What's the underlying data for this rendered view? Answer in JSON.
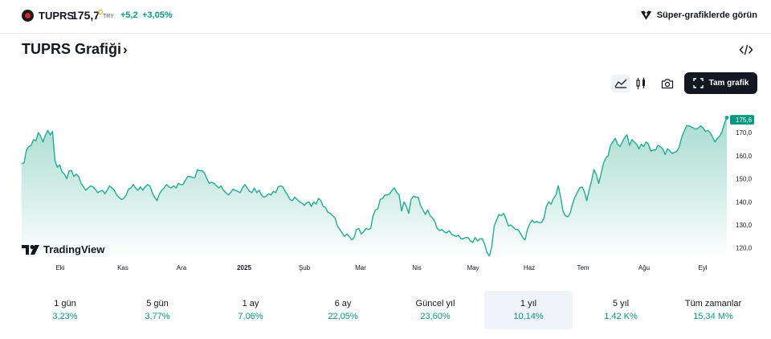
{
  "symbol": {
    "name": "TUPRS",
    "price": "175,7",
    "currency": "TRY",
    "change": "+5,2",
    "change_pct": "+3,05%"
  },
  "super_charts_label": "Süper-grafiklerde görün",
  "title": "TUPRS Grafiği",
  "toolbar": {
    "full_chart_label": "Tam grafik"
  },
  "branding": "TradingView",
  "colors": {
    "line": "#22ab94",
    "positive": "#089981",
    "fill_top": "#9fd9cc",
    "fill_bottom": "#ffffff"
  },
  "chart_data": {
    "type": "area",
    "y_ticks": [
      "170,0",
      "160,0",
      "150,0",
      "140,0",
      "130,0",
      "120,0"
    ],
    "y_tick_values": [
      170,
      160,
      150,
      140,
      130,
      120
    ],
    "x_ticks": [
      "Eki",
      "Kas",
      "Ara",
      "2025",
      "Şub",
      "Mar",
      "Nis",
      "May",
      "Haz",
      "Tem",
      "Ağu",
      "Eyl"
    ],
    "ylim": [
      115,
      184
    ],
    "last_value_label": "175,6",
    "last_value": 175.6,
    "values": [
      156.5,
      157,
      162.5,
      164,
      164.5,
      167,
      166.5,
      170,
      168.5,
      166,
      169,
      171,
      169,
      170.5,
      158,
      155,
      156,
      153,
      152,
      150,
      153.5,
      153.5,
      151,
      152,
      151,
      148,
      146.5,
      145,
      146,
      147,
      146.5,
      145.5,
      144,
      144.5,
      145,
      143.5,
      145,
      147,
      146,
      145,
      143,
      142,
      141,
      141.5,
      143,
      145.5,
      146,
      147.5,
      146,
      145,
      146.5,
      145,
      146.5,
      147.5,
      147,
      144,
      142,
      140.5,
      143.5,
      145,
      146,
      147.5,
      146.5,
      146,
      147,
      146,
      148,
      147.5,
      147.5,
      149.5,
      151,
      151,
      150.5,
      150.5,
      154,
      153.5,
      153.5,
      152.5,
      150,
      148,
      148.5,
      148,
      147,
      146,
      147,
      145,
      144,
      143,
      144,
      145.5,
      145,
      144.5,
      144,
      146,
      147.5,
      146,
      144.5,
      144,
      146,
      144,
      145,
      143,
      142,
      142.5,
      143.5,
      143,
      144.5,
      144,
      146.5,
      147,
      146.5,
      144.5,
      143,
      141,
      140.5,
      142,
      141,
      140,
      139.5,
      138.5,
      139.5,
      140,
      138,
      140,
      139,
      141.5,
      140.5,
      138,
      137.5,
      135.5,
      135,
      134,
      133,
      129.5,
      128,
      126.5,
      125,
      126,
      125,
      123.5,
      124.5,
      128,
      128.5,
      126,
      127,
      128.5,
      128,
      128.5,
      134,
      136.5,
      137,
      141,
      141.5,
      143,
      143,
      143.5,
      145,
      146,
      144,
      143,
      136,
      140,
      138,
      135,
      141,
      142.5,
      142,
      142,
      138.5,
      136.5,
      134.5,
      136.5,
      134,
      133,
      131.5,
      128.5,
      127.5,
      128,
      127,
      126.5,
      127.5,
      126,
      125.5,
      125,
      125.5,
      124,
      124,
      124.5,
      124.5,
      123,
      122.5,
      124.5,
      123,
      124,
      124,
      121.5,
      118,
      116.5,
      120.5,
      129.5,
      132,
      134.5,
      134,
      135,
      132.5,
      129.5,
      130,
      129,
      128,
      128,
      126.5,
      124.5,
      123.5,
      128,
      130.5,
      132,
      131,
      131.5,
      131,
      131,
      133,
      138,
      140,
      139,
      141.5,
      143,
      147,
      142,
      136,
      134,
      133.5,
      135,
      139,
      142,
      144,
      146,
      146.5,
      144.5,
      140.5,
      145,
      149,
      154,
      152,
      148,
      152,
      156.5,
      159,
      160,
      164.5,
      166,
      167.5,
      165,
      164,
      166,
      168,
      169,
      164.5,
      167,
      166,
      165,
      163,
      165,
      164,
      166,
      165,
      162,
      162.5,
      162.5,
      164.5,
      164,
      163,
      160.5,
      163,
      162,
      161,
      161.5,
      162,
      164,
      168,
      170.5,
      173,
      173,
      172.5,
      172,
      171.5,
      172,
      173,
      172,
      170.5,
      171,
      170,
      168,
      166,
      167.5,
      168.5,
      170.5,
      174,
      176.5
    ]
  },
  "periods": [
    {
      "label": "1 gün",
      "value": "3,23%"
    },
    {
      "label": "5 gün",
      "value": "3,77%"
    },
    {
      "label": "1 ay",
      "value": "7,06%"
    },
    {
      "label": "6 ay",
      "value": "22,05%"
    },
    {
      "label": "Güncel yıl",
      "value": "23,60%"
    },
    {
      "label": "1 yıl",
      "value": "10,14%"
    },
    {
      "label": "5 yıl",
      "value": "1,42 K%"
    },
    {
      "label": "Tüm zamanlar",
      "value": "15,34 M%"
    }
  ]
}
